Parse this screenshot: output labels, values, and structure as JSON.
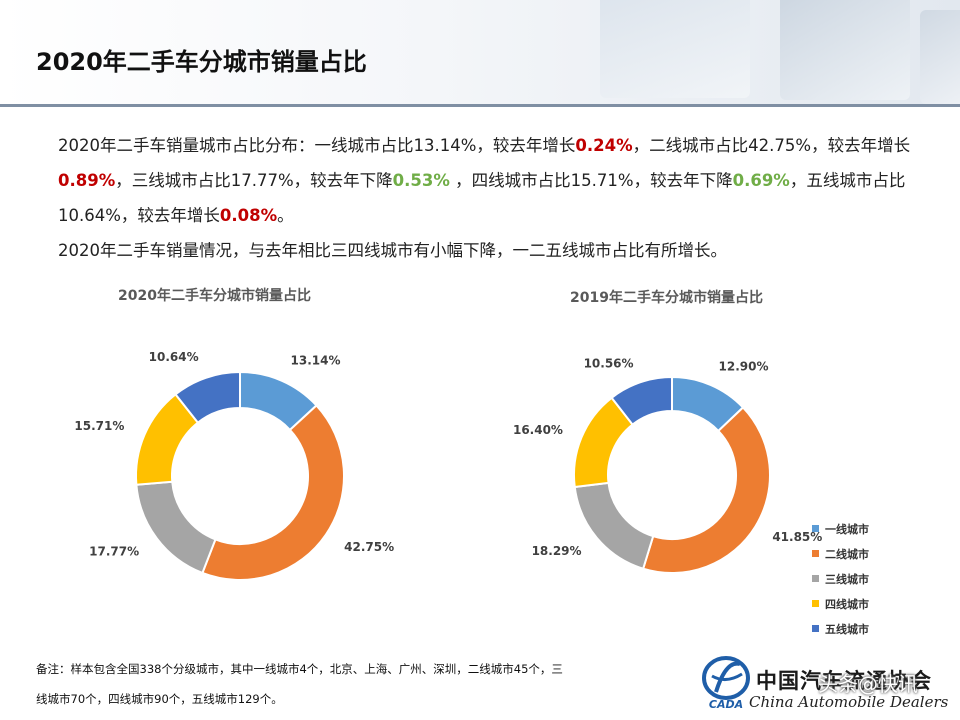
{
  "page": {
    "title": "2020年二手车分城市销量占比"
  },
  "intro": {
    "p1_a": "2020年二手车销量城市占比分布：一线城市占比13.14%，较去年增长",
    "p1_b": "0.24%",
    "p1_c": "，二线城市占比42.75%，较去年增长",
    "p1_d": "0.89%",
    "p1_e": "，三线城市占比17.77%，较去年下降",
    "p1_f": "0.53%",
    "p1_g": " ，四线城市占比15.71%，较去年下降",
    "p1_h": "0.69%",
    "p1_i": "，五线城市占比10.64%，较去年增长",
    "p1_j": "0.08%",
    "p1_k": "。",
    "p2": "2020年二手车销量情况，与去年相比三四线城市有小幅下降，一二五线城市占比有所增长。"
  },
  "chart_data": [
    {
      "type": "pie",
      "title": "2020年二手车分城市销量占比",
      "categories": [
        "一线城市",
        "二线城市",
        "三线城市",
        "四线城市",
        "五线城市"
      ],
      "values": [
        13.14,
        42.75,
        17.77,
        15.71,
        10.64
      ],
      "labels": [
        "13.14%",
        "42.75%",
        "17.77%",
        "15.71%",
        "10.64%"
      ],
      "colors": [
        "#5b9bd5",
        "#ed7d31",
        "#a5a5a5",
        "#ffc000",
        "#4472c4"
      ],
      "donut": true
    },
    {
      "type": "pie",
      "title": "2019年二手车分城市销量占比",
      "categories": [
        "一线城市",
        "二线城市",
        "三线城市",
        "四线城市",
        "五线城市"
      ],
      "values": [
        12.9,
        41.85,
        18.29,
        16.4,
        10.56
      ],
      "labels": [
        "12.90%",
        "41.85%",
        "18.29%",
        "16.40%",
        "10.56%"
      ],
      "colors": [
        "#5b9bd5",
        "#ed7d31",
        "#a5a5a5",
        "#ffc000",
        "#4472c4"
      ],
      "donut": true,
      "legend": "right"
    }
  ],
  "legend": {
    "items": [
      {
        "label": "一线城市",
        "color": "#5b9bd5"
      },
      {
        "label": "二线城市",
        "color": "#ed7d31"
      },
      {
        "label": "三线城市",
        "color": "#a5a5a5"
      },
      {
        "label": "四线城市",
        "color": "#ffc000"
      },
      {
        "label": "五线城市",
        "color": "#4472c4"
      }
    ]
  },
  "footnote": {
    "line1": "备注：样本包含全国338个分级城市，其中一线城市4个，北京、上海、广州、深圳，二线城市45个，三",
    "line2": "线城市70个，四线城市90个，五线城市129个。"
  },
  "organization": {
    "name_cn": "中国汽车流通协会",
    "name_en": "China Automobile Dealers",
    "logo_text": "CADA",
    "logo_icon": "cada-logo-icon",
    "watermark": "头条@快讯"
  }
}
